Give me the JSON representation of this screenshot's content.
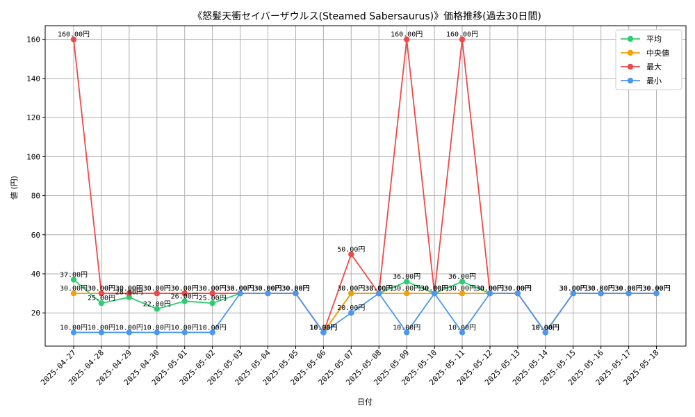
{
  "chart_data": {
    "type": "line",
    "title": "《怒髪天衝セイバーザウルス(Steamed Sabersaurus)》価格推移(過去30日間)",
    "xlabel": "日付",
    "ylabel": "値 (円)",
    "ylim": [
      3,
      167
    ],
    "yticks": [
      20,
      40,
      60,
      80,
      100,
      120,
      140,
      160
    ],
    "grid": true,
    "legend_position": "top-right",
    "value_suffix": "円",
    "categories": [
      "2025-04-27",
      "2025-04-28",
      "2025-04-29",
      "2025-04-30",
      "2025-05-01",
      "2025-05-02",
      "2025-05-03",
      "2025-05-04",
      "2025-05-05",
      "2025-05-06",
      "2025-05-07",
      "2025-05-08",
      "2025-05-09",
      "2025-05-10",
      "2025-05-11",
      "2025-05-12",
      "2025-05-13",
      "2025-05-14",
      "2025-05-15",
      "2025-05-16",
      "2025-05-17",
      "2025-05-18"
    ],
    "series": [
      {
        "name": "平均",
        "color": "#2ecc71",
        "values": [
          37,
          25,
          28,
          22,
          26,
          25,
          30,
          30,
          30,
          10,
          30,
          30,
          36,
          30,
          36,
          30,
          30,
          10,
          30,
          30,
          30,
          30
        ]
      },
      {
        "name": "中央値",
        "color": "#f5a000",
        "values": [
          30,
          30,
          30,
          30,
          30,
          30,
          30,
          30,
          30,
          10,
          30,
          30,
          30,
          30,
          30,
          30,
          30,
          10,
          30,
          30,
          30,
          30
        ]
      },
      {
        "name": "最大",
        "color": "#f04848",
        "values": [
          160,
          30,
          30,
          30,
          30,
          30,
          30,
          30,
          30,
          10,
          50,
          30,
          160,
          30,
          160,
          30,
          30,
          10,
          30,
          30,
          30,
          30
        ]
      },
      {
        "name": "最小",
        "color": "#4a98f0",
        "values": [
          10,
          10,
          10,
          10,
          10,
          10,
          30,
          30,
          30,
          10,
          20,
          30,
          10,
          30,
          10,
          30,
          30,
          10,
          30,
          30,
          30,
          30
        ]
      }
    ]
  }
}
